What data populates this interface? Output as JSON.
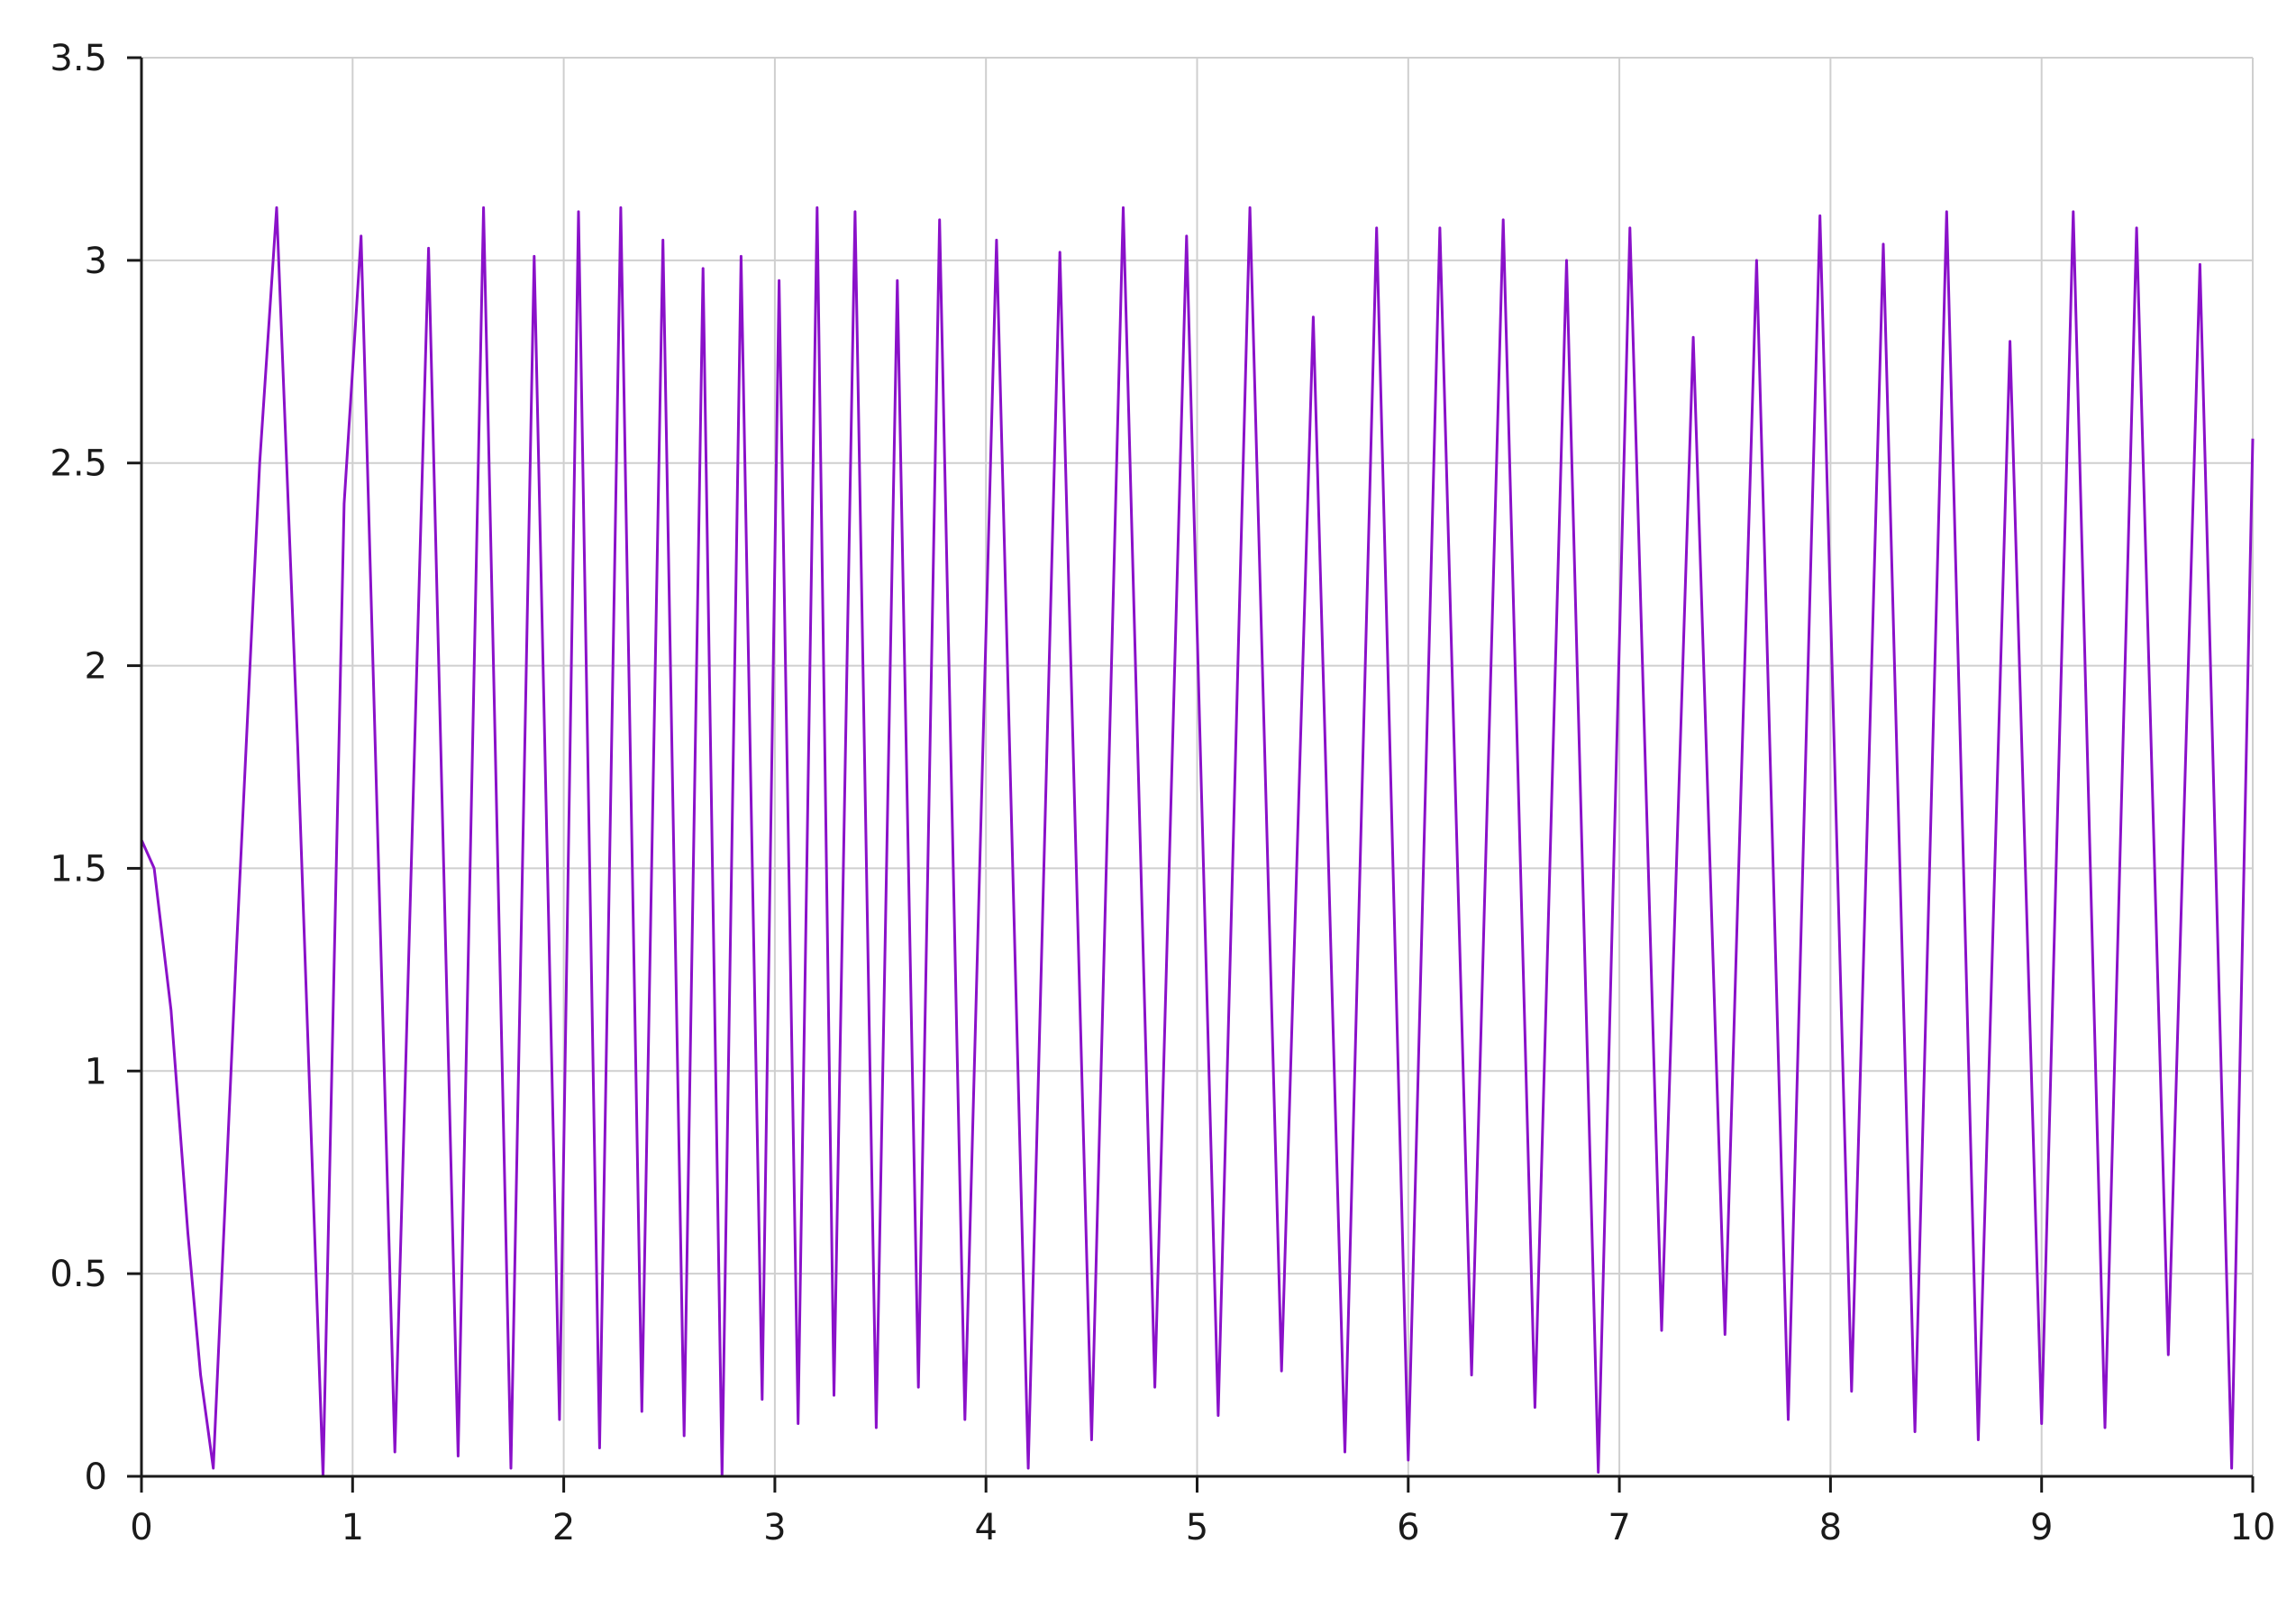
{
  "chart_data": {
    "type": "line",
    "title": "",
    "xlabel": "",
    "ylabel": "",
    "xlim": [
      0,
      10
    ],
    "ylim": [
      0,
      3.5
    ],
    "x_ticks": [
      0,
      1,
      2,
      3,
      4,
      5,
      6,
      7,
      8,
      9,
      10
    ],
    "y_ticks": [
      0,
      0.5,
      1,
      1.5,
      2,
      2.5,
      3,
      3.5
    ],
    "x_tick_labels": [
      "0",
      "1",
      "2",
      "3",
      "4",
      "5",
      "6",
      "7",
      "8",
      "9",
      "10"
    ],
    "y_tick_labels": [
      "0",
      "0.5",
      "1",
      "1.5",
      "2",
      "2.5",
      "3",
      "3.5"
    ],
    "grid": true,
    "legend": "none",
    "colors": {
      "series": "#8a11c9"
    },
    "series": [
      {
        "x": [
          0,
          0.06,
          0.14,
          0.22,
          0.28,
          0.34,
          0.45,
          0.56,
          0.64,
          0.74,
          0.86,
          0.96,
          1.04,
          1.2,
          1.36,
          1.5,
          1.62,
          1.75,
          1.86,
          1.98,
          2.07,
          2.17,
          2.27,
          2.37,
          2.47,
          2.57,
          2.66,
          2.75,
          2.84,
          2.94,
          3.02,
          3.11,
          3.2,
          3.28,
          3.38,
          3.48,
          3.58,
          3.68,
          3.78,
          3.9,
          4.05,
          4.2,
          4.35,
          4.5,
          4.65,
          4.8,
          4.95,
          5.1,
          5.25,
          5.4,
          5.55,
          5.7,
          5.85,
          6.0,
          6.15,
          6.3,
          6.45,
          6.6,
          6.75,
          6.9,
          7.05,
          7.2,
          7.35,
          7.5,
          7.65,
          7.8,
          7.95,
          8.1,
          8.25,
          8.4,
          8.55,
          8.7,
          8.85,
          9.0,
          9.15,
          9.3,
          9.45,
          9.6,
          9.75,
          9.9,
          10.0
        ],
        "y": [
          1.57,
          1.5,
          1.15,
          0.6,
          0.25,
          0.02,
          1.3,
          2.5,
          3.13,
          1.8,
          0.0,
          2.4,
          3.06,
          0.06,
          3.03,
          0.05,
          3.13,
          0.02,
          3.01,
          0.14,
          3.12,
          0.07,
          3.13,
          0.16,
          3.05,
          0.1,
          2.98,
          0.0,
          3.01,
          0.19,
          2.95,
          0.13,
          3.13,
          0.2,
          3.12,
          0.12,
          2.95,
          0.22,
          3.1,
          0.14,
          3.05,
          0.02,
          3.02,
          0.09,
          3.13,
          0.22,
          3.06,
          0.15,
          3.13,
          0.26,
          2.86,
          0.06,
          3.08,
          0.04,
          3.08,
          0.25,
          3.1,
          0.17,
          3.0,
          0.01,
          3.08,
          0.36,
          2.81,
          0.35,
          3.0,
          0.14,
          3.11,
          0.21,
          3.04,
          0.11,
          3.12,
          0.09,
          2.8,
          0.13,
          3.12,
          0.12,
          3.08,
          0.3,
          2.99,
          0.02,
          2.56
        ]
      }
    ]
  }
}
